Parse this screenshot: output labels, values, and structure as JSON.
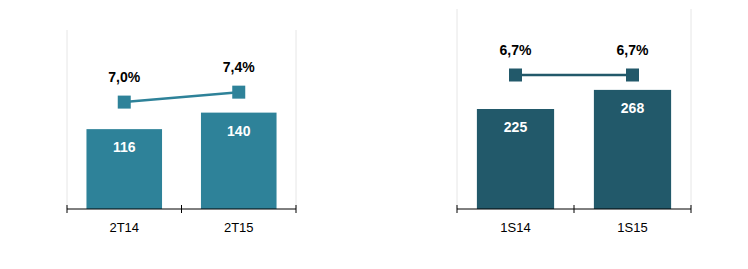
{
  "chart_data": [
    {
      "type": "bar",
      "categories": [
        "2T14",
        "2T15"
      ],
      "ylim": [
        0,
        260
      ],
      "y2lim": [
        2.7,
        9.9
      ],
      "tick_labels": "x",
      "data_labels": true,
      "series": [
        {
          "type": "bar",
          "color": "#2e8299",
          "values": [
            116,
            140
          ]
        },
        {
          "type": "line",
          "axis": "y2",
          "color": "#2e8299",
          "marker": "square",
          "line_style": "solid",
          "values": [
            7.0,
            7.4
          ],
          "value_labels": [
            "7,0%",
            "7,4%"
          ]
        }
      ]
    },
    {
      "type": "bar",
      "categories": [
        "1S14",
        "1S15"
      ],
      "ylim": [
        0,
        450
      ],
      "y2lim": [
        0,
        10
      ],
      "tick_labels": "x",
      "data_labels": true,
      "series": [
        {
          "type": "bar",
          "color": "#22596a",
          "values": [
            225,
            268
          ]
        },
        {
          "type": "line",
          "axis": "y2",
          "color": "#22596a",
          "marker": "square",
          "line_style": "solid",
          "values": [
            6.7,
            6.7
          ],
          "value_labels": [
            "6,7%",
            "6,7%"
          ]
        }
      ]
    }
  ]
}
